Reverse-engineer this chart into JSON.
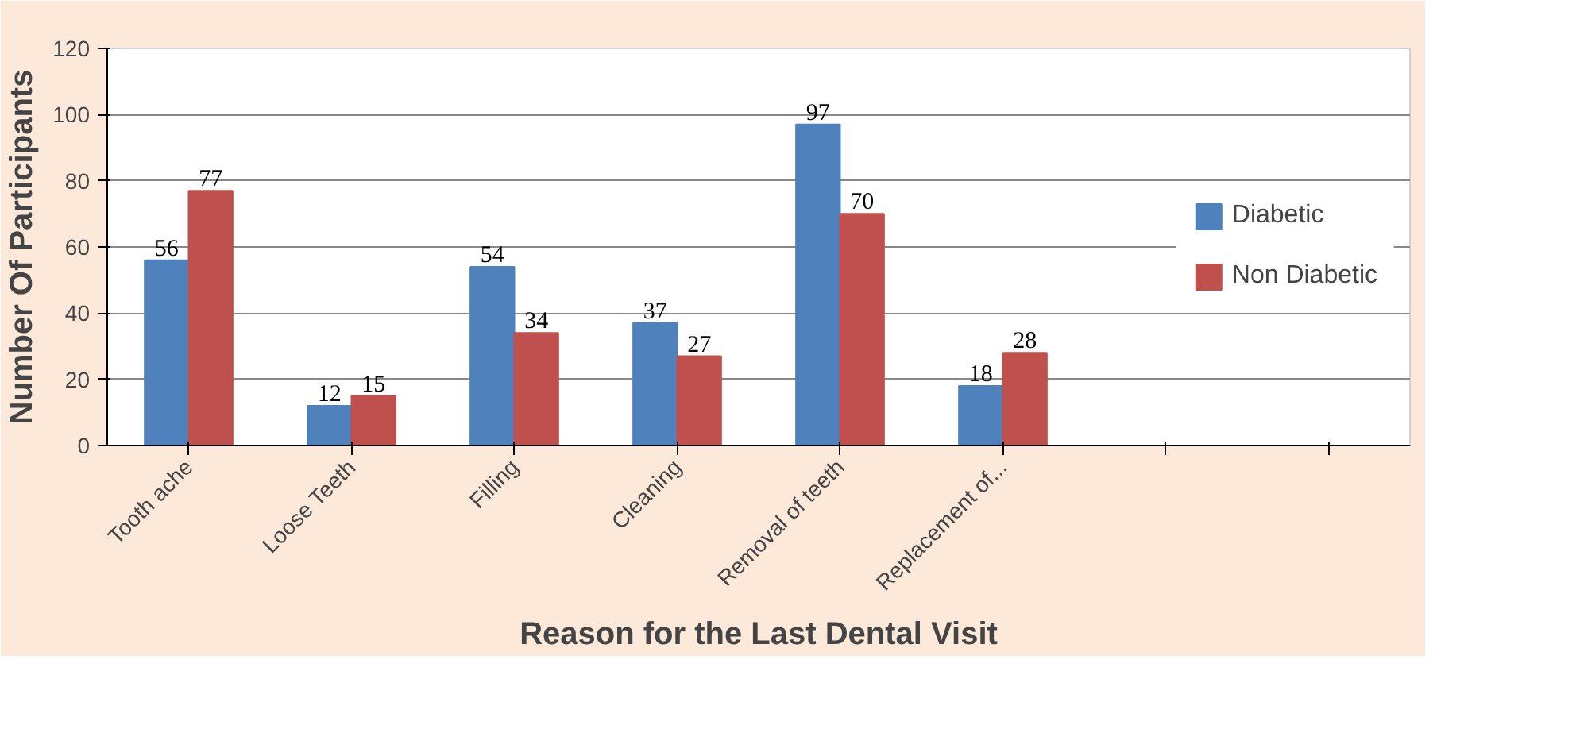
{
  "chart_data": {
    "type": "bar",
    "xlabel": "Reason for the Last Dental Visit",
    "ylabel": "Number Of Participants",
    "categories": [
      "Tooth ache",
      "Loose Teeth",
      "Filling",
      "Cleaning",
      "Removal of teeth",
      "Replacement of...",
      null,
      null
    ],
    "series": [
      {
        "name": "Diabetic",
        "color": "#4f81bd",
        "values": [
          56,
          12,
          54,
          37,
          97,
          18,
          null,
          null
        ]
      },
      {
        "name": "Non Diabetic",
        "color": "#c0504d",
        "values": [
          77,
          15,
          34,
          27,
          70,
          28,
          null,
          null
        ]
      }
    ],
    "ylim": [
      0,
      120
    ],
    "yticks": [
      0,
      20,
      40,
      60,
      80,
      100,
      120
    ],
    "grid": "y",
    "legend": "right",
    "data_labels": true
  }
}
